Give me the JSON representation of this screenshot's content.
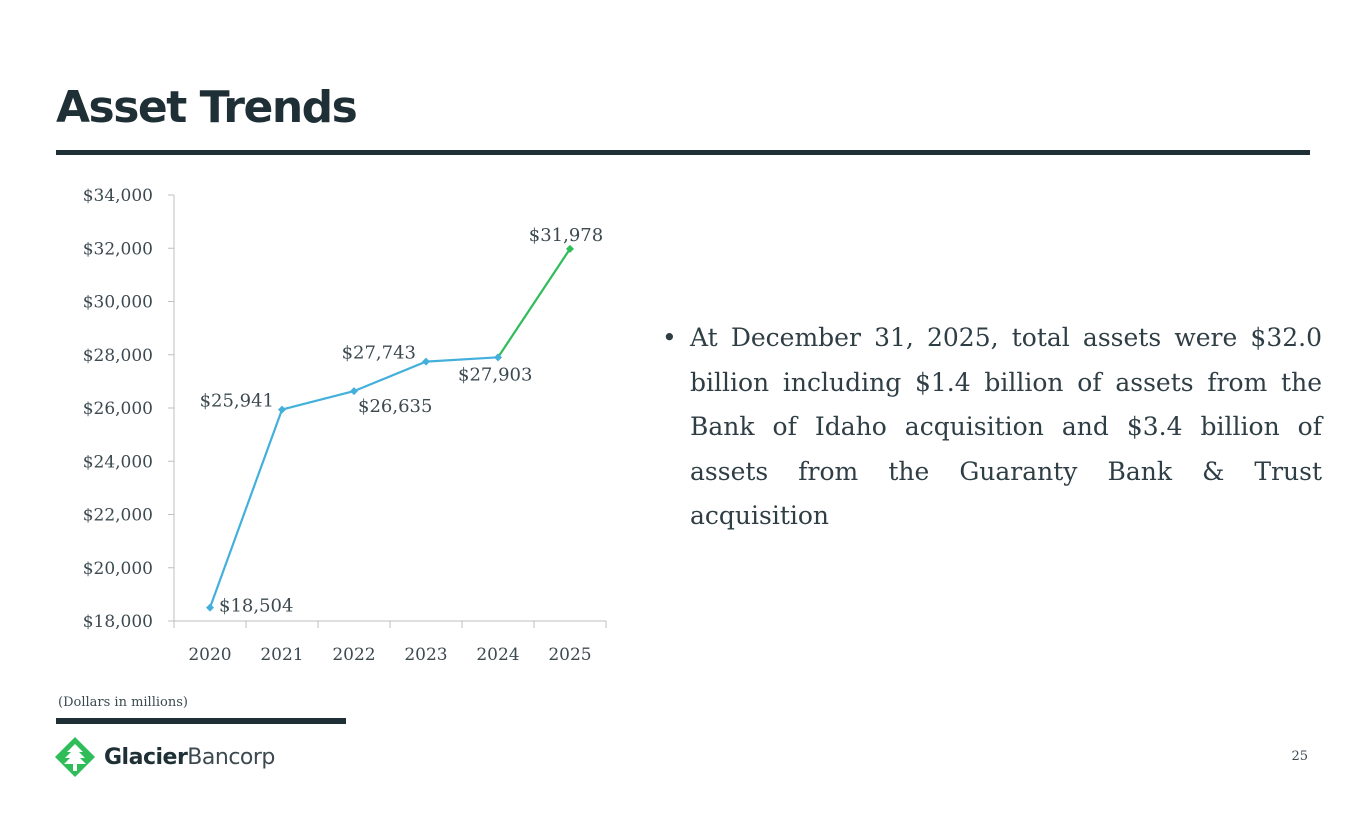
{
  "slide": {
    "title": "Asset Trends",
    "footnote": "(Dollars in millions)",
    "page_number": "25",
    "logo": {
      "name_bold": "Glacier",
      "name_regular": "Bancorp",
      "icon": "glacier-tree-icon"
    }
  },
  "bullets": [
    "At December 31, 2025, total assets were $32.0 billion including $1.4 billion of assets from the Bank of Idaho acquisition and $3.4 billion of assets from the Guaranty Bank & Trust acquisition"
  ],
  "colors": {
    "series_main": "#43b0dc",
    "series_last": "#2ebd59",
    "dark": "#1e2f36",
    "logo_green": "#2ebd59"
  },
  "chart_data": {
    "type": "line",
    "categories": [
      "2020",
      "2021",
      "2022",
      "2023",
      "2024",
      "2025"
    ],
    "values": [
      18504,
      25941,
      26635,
      27743,
      27903,
      31978
    ],
    "value_labels": [
      "$18,504",
      "$25,941",
      "$26,635",
      "$27,743",
      "$27,903",
      "$31,978"
    ],
    "ylim": [
      18000,
      34000
    ],
    "y_ticks": [
      18000,
      20000,
      22000,
      24000,
      26000,
      28000,
      30000,
      32000,
      34000
    ],
    "y_tick_labels": [
      "$18,000",
      "$20,000",
      "$22,000",
      "$24,000",
      "$26,000",
      "$28,000",
      "$30,000",
      "$32,000",
      "$34,000"
    ],
    "grid": false,
    "legend": "none",
    "title": "",
    "xlabel": "",
    "ylabel": ""
  }
}
